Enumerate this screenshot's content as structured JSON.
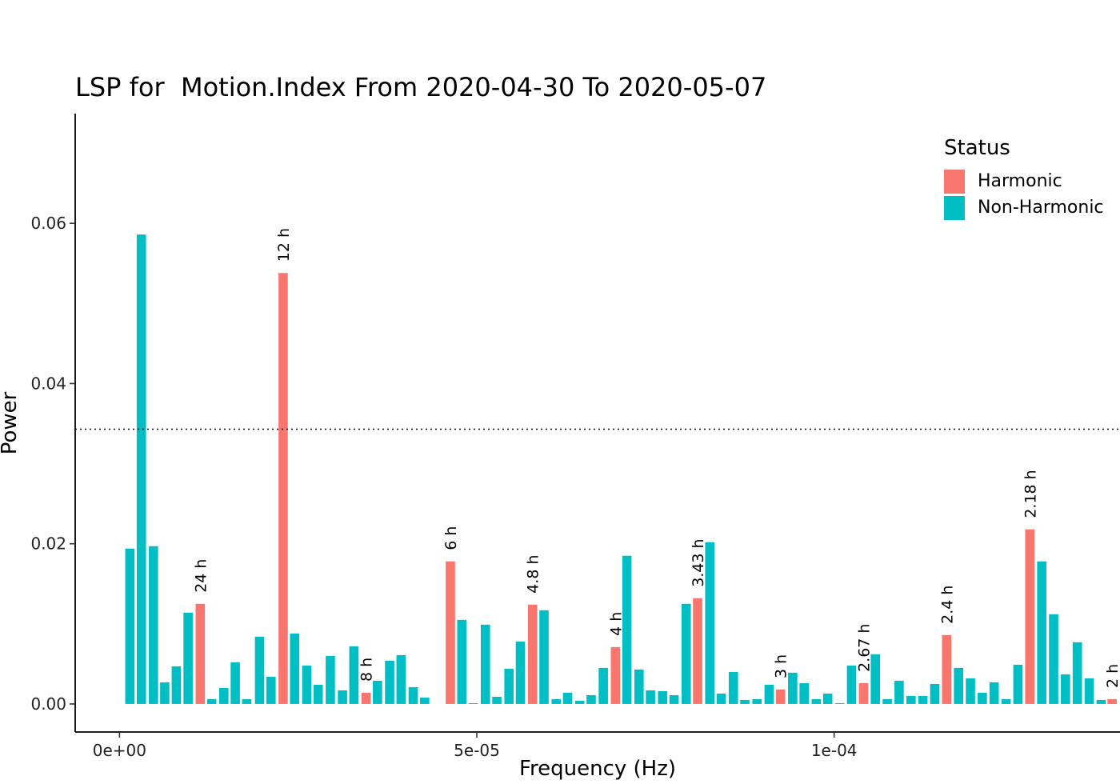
{
  "chart_data": {
    "type": "bar",
    "title": "LSP for  Motion.Index From 2020-04-30 To 2020-05-07",
    "xlabel": "Frequency (Hz)",
    "ylabel": "Power",
    "xlim": [
      -6.2e-06,
      0.00014
    ],
    "ylim": [
      -0.0035,
      0.0737
    ],
    "x_ticks": [
      {
        "value": 0,
        "label": "0e+00"
      },
      {
        "value": 5e-05,
        "label": "5e-05"
      },
      {
        "value": 0.0001,
        "label": "1e-04"
      }
    ],
    "y_ticks": [
      {
        "value": 0,
        "label": "0.00"
      },
      {
        "value": 0.02,
        "label": "0.02"
      },
      {
        "value": 0.04,
        "label": "0.04"
      },
      {
        "value": 0.06,
        "label": "0.06"
      }
    ],
    "threshold": 0.0343,
    "grid": false,
    "legend": {
      "title": "Status",
      "position": "top-right",
      "entries": [
        {
          "name": "Harmonic",
          "color": "#F8766D"
        },
        {
          "name": "Non-Harmonic",
          "color": "#00BFC4"
        }
      ]
    },
    "colors": {
      "Harmonic": "#F8766D",
      "Non-Harmonic": "#00BFC4"
    },
    "bar_width": 1.3e-06,
    "bars": [
      {
        "x": 1.45e-06,
        "y": 0.0194,
        "status": "Non-Harmonic"
      },
      {
        "x": 3.06e-06,
        "y": 0.0586,
        "status": "Non-Harmonic"
      },
      {
        "x": 4.75e-06,
        "y": 0.0197,
        "status": "Non-Harmonic"
      },
      {
        "x": 6.33e-06,
        "y": 0.0027,
        "status": "Non-Harmonic"
      },
      {
        "x": 7.95e-06,
        "y": 0.0047,
        "status": "Non-Harmonic"
      },
      {
        "x": 9.6e-06,
        "y": 0.0114,
        "status": "Non-Harmonic"
      },
      {
        "x": 1.13e-05,
        "y": 0.0125,
        "status": "Harmonic",
        "label": "24 h"
      },
      {
        "x": 1.29e-05,
        "y": 0.0006,
        "status": "Non-Harmonic"
      },
      {
        "x": 1.46e-05,
        "y": 0.002,
        "status": "Non-Harmonic"
      },
      {
        "x": 1.62e-05,
        "y": 0.0052,
        "status": "Non-Harmonic"
      },
      {
        "x": 1.78e-05,
        "y": 0.0006,
        "status": "Non-Harmonic"
      },
      {
        "x": 1.96e-05,
        "y": 0.0084,
        "status": "Non-Harmonic"
      },
      {
        "x": 2.12e-05,
        "y": 0.0034,
        "status": "Non-Harmonic"
      },
      {
        "x": 2.29e-05,
        "y": 0.0538,
        "status": "Harmonic",
        "label": "12 h"
      },
      {
        "x": 2.45e-05,
        "y": 0.0088,
        "status": "Non-Harmonic"
      },
      {
        "x": 2.62e-05,
        "y": 0.0048,
        "status": "Non-Harmonic"
      },
      {
        "x": 2.78e-05,
        "y": 0.0024,
        "status": "Non-Harmonic"
      },
      {
        "x": 2.95e-05,
        "y": 0.006,
        "status": "Non-Harmonic"
      },
      {
        "x": 3.12e-05,
        "y": 0.0017,
        "status": "Non-Harmonic"
      },
      {
        "x": 3.28e-05,
        "y": 0.0072,
        "status": "Non-Harmonic"
      },
      {
        "x": 3.45e-05,
        "y": 0.0014,
        "status": "Harmonic",
        "label": "8 h"
      },
      {
        "x": 3.61e-05,
        "y": 0.0029,
        "status": "Non-Harmonic"
      },
      {
        "x": 3.78e-05,
        "y": 0.0054,
        "status": "Non-Harmonic"
      },
      {
        "x": 3.94e-05,
        "y": 0.0061,
        "status": "Non-Harmonic"
      },
      {
        "x": 4.11e-05,
        "y": 0.0021,
        "status": "Non-Harmonic"
      },
      {
        "x": 4.27e-05,
        "y": 0.0008,
        "status": "Non-Harmonic"
      },
      {
        "x": 4.63e-05,
        "y": 0.0178,
        "status": "Harmonic",
        "label": "6 h"
      },
      {
        "x": 4.79e-05,
        "y": 0.0105,
        "status": "Non-Harmonic"
      },
      {
        "x": 4.95e-05,
        "y": 0.0001,
        "status": "Non-Harmonic"
      },
      {
        "x": 5.12e-05,
        "y": 0.0099,
        "status": "Non-Harmonic"
      },
      {
        "x": 5.28e-05,
        "y": 0.0009,
        "status": "Non-Harmonic"
      },
      {
        "x": 5.45e-05,
        "y": 0.0044,
        "status": "Non-Harmonic"
      },
      {
        "x": 5.61e-05,
        "y": 0.0078,
        "status": "Non-Harmonic"
      },
      {
        "x": 5.78e-05,
        "y": 0.0124,
        "status": "Harmonic",
        "label": "4.8 h"
      },
      {
        "x": 5.94e-05,
        "y": 0.0117,
        "status": "Non-Harmonic"
      },
      {
        "x": 6.11e-05,
        "y": 0.0006,
        "status": "Non-Harmonic"
      },
      {
        "x": 6.27e-05,
        "y": 0.0014,
        "status": "Non-Harmonic"
      },
      {
        "x": 6.44e-05,
        "y": 0.0004,
        "status": "Non-Harmonic"
      },
      {
        "x": 6.6e-05,
        "y": 0.0011,
        "status": "Non-Harmonic"
      },
      {
        "x": 6.77e-05,
        "y": 0.0045,
        "status": "Non-Harmonic"
      },
      {
        "x": 6.94e-05,
        "y": 0.0071,
        "status": "Harmonic",
        "label": "4 h"
      },
      {
        "x": 7.1e-05,
        "y": 0.0185,
        "status": "Non-Harmonic"
      },
      {
        "x": 7.27e-05,
        "y": 0.0043,
        "status": "Non-Harmonic"
      },
      {
        "x": 7.43e-05,
        "y": 0.0017,
        "status": "Non-Harmonic"
      },
      {
        "x": 7.6e-05,
        "y": 0.0016,
        "status": "Non-Harmonic"
      },
      {
        "x": 7.76e-05,
        "y": 0.0011,
        "status": "Non-Harmonic"
      },
      {
        "x": 7.93e-05,
        "y": 0.0125,
        "status": "Non-Harmonic"
      },
      {
        "x": 8.09e-05,
        "y": 0.0132,
        "status": "Harmonic",
        "label": "3.43 h"
      },
      {
        "x": 8.26e-05,
        "y": 0.0202,
        "status": "Non-Harmonic"
      },
      {
        "x": 8.42e-05,
        "y": 0.0013,
        "status": "Non-Harmonic"
      },
      {
        "x": 8.59e-05,
        "y": 0.004,
        "status": "Non-Harmonic"
      },
      {
        "x": 8.75e-05,
        "y": 0.0005,
        "status": "Non-Harmonic"
      },
      {
        "x": 8.92e-05,
        "y": 0.0006,
        "status": "Non-Harmonic"
      },
      {
        "x": 9.09e-05,
        "y": 0.0024,
        "status": "Non-Harmonic"
      },
      {
        "x": 9.25e-05,
        "y": 0.0018,
        "status": "Harmonic",
        "label": "3 h"
      },
      {
        "x": 9.42e-05,
        "y": 0.0039,
        "status": "Non-Harmonic"
      },
      {
        "x": 9.58e-05,
        "y": 0.0026,
        "status": "Non-Harmonic"
      },
      {
        "x": 9.75e-05,
        "y": 0.0006,
        "status": "Non-Harmonic"
      },
      {
        "x": 9.91e-05,
        "y": 0.0013,
        "status": "Non-Harmonic"
      },
      {
        "x": 0.00010078,
        "y": 0.0001,
        "status": "Non-Harmonic"
      },
      {
        "x": 0.00010244,
        "y": 0.0048,
        "status": "Non-Harmonic"
      },
      {
        "x": 0.00010411,
        "y": 0.0026,
        "status": "Harmonic",
        "label": "2.67 h"
      },
      {
        "x": 0.00010577,
        "y": 0.0062,
        "status": "Non-Harmonic"
      },
      {
        "x": 0.00010743,
        "y": 0.0006,
        "status": "Non-Harmonic"
      },
      {
        "x": 0.00010909,
        "y": 0.0029,
        "status": "Non-Harmonic"
      },
      {
        "x": 0.00011076,
        "y": 0.001,
        "status": "Non-Harmonic"
      },
      {
        "x": 0.00011242,
        "y": 0.001,
        "status": "Non-Harmonic"
      },
      {
        "x": 0.00011408,
        "y": 0.0025,
        "status": "Non-Harmonic"
      },
      {
        "x": 0.00011574,
        "y": 0.0086,
        "status": "Harmonic",
        "label": "2.4 h"
      },
      {
        "x": 0.00011741,
        "y": 0.0045,
        "status": "Non-Harmonic"
      },
      {
        "x": 0.00011907,
        "y": 0.0032,
        "status": "Non-Harmonic"
      },
      {
        "x": 0.00012073,
        "y": 0.0014,
        "status": "Non-Harmonic"
      },
      {
        "x": 0.00012239,
        "y": 0.0027,
        "status": "Non-Harmonic"
      },
      {
        "x": 0.00012406,
        "y": 0.0006,
        "status": "Non-Harmonic"
      },
      {
        "x": 0.00012572,
        "y": 0.0049,
        "status": "Non-Harmonic"
      },
      {
        "x": 0.00012738,
        "y": 0.0218,
        "status": "Harmonic",
        "label": "2.18 h"
      },
      {
        "x": 0.00012905,
        "y": 0.0178,
        "status": "Non-Harmonic"
      },
      {
        "x": 0.00013071,
        "y": 0.0112,
        "status": "Non-Harmonic"
      },
      {
        "x": 0.00013237,
        "y": 0.0037,
        "status": "Non-Harmonic"
      },
      {
        "x": 0.00013403,
        "y": 0.0077,
        "status": "Non-Harmonic"
      },
      {
        "x": 0.0001357,
        "y": 0.0032,
        "status": "Non-Harmonic"
      },
      {
        "x": 0.00013736,
        "y": 0.0005,
        "status": "Non-Harmonic"
      },
      {
        "x": 0.00013889,
        "y": 0.0006,
        "status": "Harmonic",
        "label": "2 h"
      }
    ]
  }
}
